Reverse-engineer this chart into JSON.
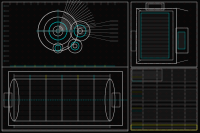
{
  "bg_color": "#080808",
  "W": "#b0b0b0",
  "C": "#00b8b8",
  "Y": "#b8b800",
  "G": "#00aa00",
  "R": "#aa0000",
  "M": "#aa00aa",
  "fig_width": 2.0,
  "fig_height": 1.33,
  "dpi": 100
}
